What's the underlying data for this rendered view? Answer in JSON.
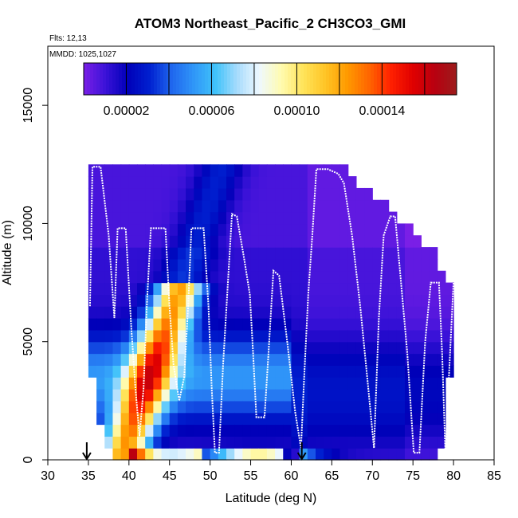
{
  "chart_data": {
    "type": "heatmap",
    "title": "ATOM3 Northeast_Pacific_2 CH3CO3_GMI",
    "flights_label": "Flts: 12,13",
    "dates_label": "MMDD: 1025,1027",
    "xlabel": "Latitude (deg N)",
    "ylabel": "Altitude (m)",
    "xlim": [
      30,
      85
    ],
    "ylim": [
      0,
      17500
    ],
    "x_ticks": [
      30,
      35,
      40,
      45,
      50,
      55,
      60,
      65,
      70,
      75,
      80,
      85
    ],
    "x_tick_labels": [
      "30",
      "35",
      "40",
      "45",
      "50",
      "55",
      "60",
      "65",
      "70",
      "75",
      "80",
      "85"
    ],
    "y_ticks": [
      0,
      5000,
      10000,
      15000
    ],
    "y_tick_labels": [
      "0",
      "5000",
      "10000",
      "15000"
    ],
    "colorbar": {
      "min": 0.0,
      "max": 0.000175,
      "ticks": [
        2e-05,
        6e-05,
        0.0001,
        0.00014
      ],
      "tick_labels": [
        "0.00002",
        "0.00006",
        "0.00010",
        "0.00014"
      ],
      "dividers": [
        2e-05,
        4e-05,
        6e-05,
        8e-05,
        0.0001,
        0.00012,
        0.00014,
        0.00016
      ],
      "colors": [
        "#7a1fe6",
        "#3a12d8",
        "#0000b8",
        "#0020d0",
        "#1f66ee",
        "#2f95f8",
        "#3fc2fa",
        "#a8dcfc",
        "#eef8ff",
        "#fffbb0",
        "#ffe45a",
        "#ffc526",
        "#ff9a00",
        "#ff6600",
        "#ff2000",
        "#e00000",
        "#b80010",
        "#9c1c1c"
      ]
    },
    "arrows_x": [
      34.8,
      61.3
    ],
    "series": [
      {
        "name": "Flight track",
        "points": [
          [
            35.2,
            6500
          ],
          [
            35.5,
            12400
          ],
          [
            36.5,
            12400
          ],
          [
            37.5,
            9500
          ],
          [
            38.2,
            6000
          ],
          [
            38.6,
            9800
          ],
          [
            39.6,
            9800
          ],
          [
            40.3,
            5500
          ],
          [
            40.8,
            3000
          ],
          [
            41.3,
            1000
          ],
          [
            41.8,
            3000
          ],
          [
            42.2,
            6500
          ],
          [
            42.7,
            9800
          ],
          [
            44.5,
            9800
          ],
          [
            45.0,
            6500
          ],
          [
            45.5,
            4000
          ],
          [
            46.2,
            2500
          ],
          [
            46.8,
            3500
          ],
          [
            47.3,
            6500
          ],
          [
            47.7,
            9800
          ],
          [
            49.2,
            9800
          ],
          [
            49.8,
            6500
          ],
          [
            50.2,
            3000
          ],
          [
            50.6,
            300
          ],
          [
            51.1,
            300
          ],
          [
            51.6,
            4000
          ],
          [
            52.2,
            7500
          ],
          [
            52.7,
            10400
          ],
          [
            53.3,
            10300
          ],
          [
            54.2,
            8500
          ],
          [
            54.9,
            7000
          ],
          [
            55.3,
            4500
          ],
          [
            55.7,
            1800
          ],
          [
            56.7,
            1800
          ],
          [
            57.2,
            4500
          ],
          [
            57.8,
            8000
          ],
          [
            58.5,
            7800
          ],
          [
            59.5,
            5000
          ],
          [
            60.5,
            2000
          ],
          [
            61.2,
            500
          ],
          [
            61.6,
            3500
          ],
          [
            62.1,
            7000
          ],
          [
            62.6,
            9500
          ],
          [
            63.1,
            12300
          ],
          [
            64.5,
            12300
          ],
          [
            65.8,
            12100
          ],
          [
            66.5,
            11700
          ],
          [
            67.5,
            9500
          ],
          [
            68.5,
            6500
          ],
          [
            69.5,
            3000
          ],
          [
            70.2,
            500
          ],
          [
            70.8,
            6000
          ],
          [
            71.4,
            9500
          ],
          [
            72.2,
            10300
          ],
          [
            72.8,
            10300
          ],
          [
            73.4,
            8000
          ],
          [
            74.3,
            4500
          ],
          [
            75.1,
            300
          ],
          [
            75.8,
            300
          ],
          [
            76.5,
            5000
          ],
          [
            77.2,
            7500
          ],
          [
            78.2,
            7500
          ],
          [
            78.6,
            4500
          ],
          [
            79.0,
            300
          ],
          [
            79.5,
            4000
          ],
          [
            80.0,
            7500
          ]
        ]
      }
    ]
  }
}
